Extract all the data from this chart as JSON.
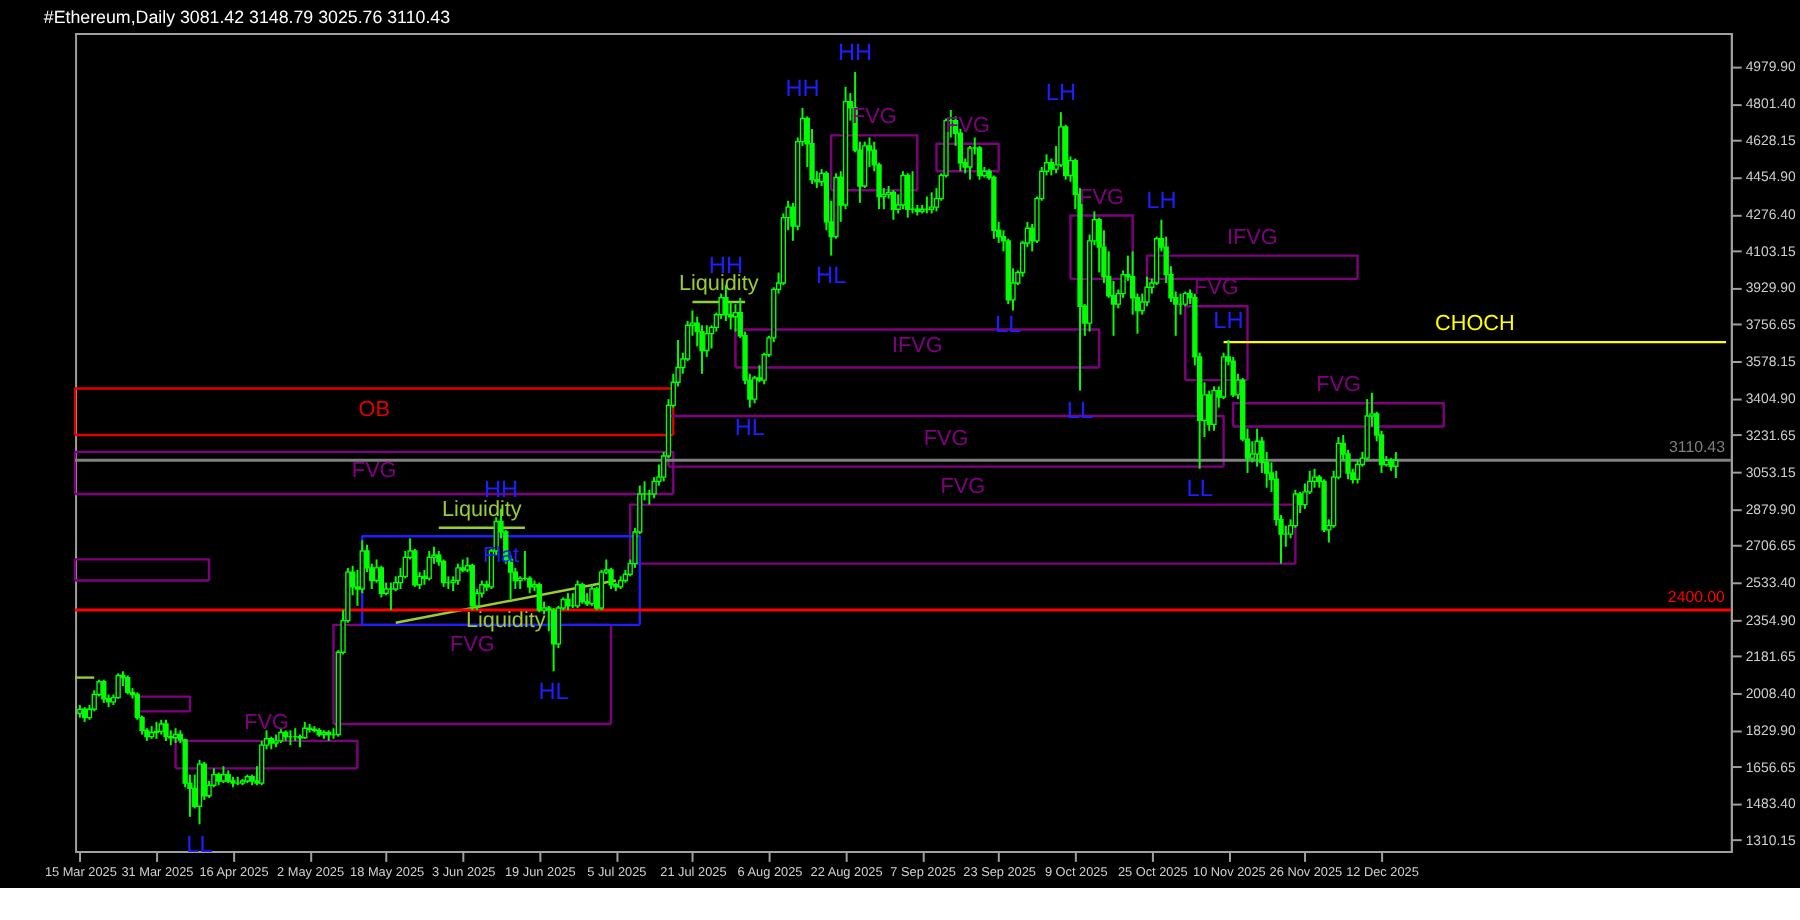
{
  "chart_data": {
    "type": "candlestick",
    "title": "#Ethereum,Daily  3081.42 3148.79 3025.76 3110.43",
    "color": "#00ff00",
    "xlim": [
      "2025-03-14",
      "2026-02-23"
    ],
    "ylim": [
      1258,
      5135
    ],
    "xticks": [
      {
        "value": "2025-03-15",
        "label": "15 Mar 2025"
      },
      {
        "value": "2025-03-31",
        "label": "31 Mar 2025"
      },
      {
        "value": "2025-04-16",
        "label": "16 Apr 2025"
      },
      {
        "value": "2025-05-02",
        "label": "2 May 2025"
      },
      {
        "value": "2025-05-18",
        "label": "18 May 2025"
      },
      {
        "value": "2025-06-03",
        "label": "3 Jun 2025"
      },
      {
        "value": "2025-06-19",
        "label": "19 Jun 2025"
      },
      {
        "value": "2025-07-05",
        "label": "5 Jul 2025"
      },
      {
        "value": "2025-07-21",
        "label": "21 Jul 2025"
      },
      {
        "value": "2025-08-06",
        "label": "6 Aug 2025"
      },
      {
        "value": "2025-08-22",
        "label": "22 Aug 2025"
      },
      {
        "value": "2025-09-07",
        "label": "7 Sep 2025"
      },
      {
        "value": "2025-09-23",
        "label": "23 Sep 2025"
      },
      {
        "value": "2025-10-09",
        "label": "9 Oct 2025"
      },
      {
        "value": "2025-10-25",
        "label": "25 Oct 2025"
      },
      {
        "value": "2025-11-10",
        "label": "10 Nov 2025"
      },
      {
        "value": "2025-11-26",
        "label": "26 Nov 2025"
      },
      {
        "value": "2025-12-12",
        "label": "12 Dec 2025"
      }
    ],
    "yticks": [
      {
        "value": 4979.9,
        "label": "4979.90"
      },
      {
        "value": 4801.4,
        "label": "4801.40"
      },
      4628.15,
      {
        "value": 4454.9,
        "label": "4454.90"
      },
      {
        "value": 4276.4,
        "label": "4276.40"
      },
      4103.15,
      {
        "value": 3929.9,
        "label": "3929.90"
      },
      3756.65,
      3578.15,
      {
        "value": 3404.9,
        "label": "3404.90"
      },
      3231.65,
      3053.15,
      {
        "value": 2879.9,
        "label": "2879.90"
      },
      2706.65,
      {
        "value": 2533.4,
        "label": "2533.40"
      },
      {
        "value": 2354.9,
        "label": "2354.90"
      },
      2181.65,
      {
        "value": 2008.4,
        "label": "2008.40"
      },
      {
        "value": 1829.9,
        "label": "1829.90"
      },
      1656.65,
      {
        "value": 1483.4,
        "label": "1483.40"
      },
      1310.15
    ],
    "x": [
      "2025-03-15",
      "2025-03-16",
      "2025-03-17",
      "2025-03-18",
      "2025-03-19",
      "2025-03-20",
      "2025-03-21",
      "2025-03-22",
      "2025-03-23",
      "2025-03-24",
      "2025-03-25",
      "2025-03-26",
      "2025-03-27",
      "2025-03-28",
      "2025-03-29",
      "2025-03-30",
      "2025-03-31",
      "2025-04-01",
      "2025-04-02",
      "2025-04-03",
      "2025-04-04",
      "2025-04-05",
      "2025-04-06",
      "2025-04-07",
      "2025-04-08",
      "2025-04-09",
      "2025-04-10",
      "2025-04-11",
      "2025-04-12",
      "2025-04-13",
      "2025-04-14",
      "2025-04-15",
      "2025-04-16",
      "2025-04-17",
      "2025-04-18",
      "2025-04-19",
      "2025-04-20",
      "2025-04-21",
      "2025-04-22",
      "2025-04-23",
      "2025-04-24",
      "2025-04-25",
      "2025-04-26",
      "2025-04-27",
      "2025-04-28",
      "2025-04-29",
      "2025-04-30",
      "2025-05-01",
      "2025-05-02",
      "2025-05-03",
      "2025-05-04",
      "2025-05-05",
      "2025-05-06",
      "2025-05-07",
      "2025-05-08",
      "2025-05-09",
      "2025-05-10",
      "2025-05-11",
      "2025-05-12",
      "2025-05-13",
      "2025-05-14",
      "2025-05-15",
      "2025-05-16",
      "2025-05-17",
      "2025-05-18",
      "2025-05-19",
      "2025-05-20",
      "2025-05-21",
      "2025-05-22",
      "2025-05-23",
      "2025-05-24",
      "2025-05-25",
      "2025-05-26",
      "2025-05-27",
      "2025-05-28",
      "2025-05-29",
      "2025-05-30",
      "2025-05-31",
      "2025-06-01",
      "2025-06-02",
      "2025-06-03",
      "2025-06-04",
      "2025-06-05",
      "2025-06-06",
      "2025-06-07",
      "2025-06-08",
      "2025-06-09",
      "2025-06-10",
      "2025-06-11",
      "2025-06-12",
      "2025-06-13",
      "2025-06-14",
      "2025-06-15",
      "2025-06-16",
      "2025-06-17",
      "2025-06-18",
      "2025-06-19",
      "2025-06-20",
      "2025-06-21",
      "2025-06-22",
      "2025-06-23",
      "2025-06-24",
      "2025-06-25",
      "2025-06-26",
      "2025-06-27",
      "2025-06-28",
      "2025-06-29",
      "2025-06-30",
      "2025-07-01",
      "2025-07-02",
      "2025-07-03",
      "2025-07-04",
      "2025-07-05",
      "2025-07-06",
      "2025-07-07",
      "2025-07-08",
      "2025-07-09",
      "2025-07-10",
      "2025-07-11",
      "2025-07-12",
      "2025-07-13",
      "2025-07-14",
      "2025-07-15",
      "2025-07-16",
      "2025-07-17",
      "2025-07-18",
      "2025-07-19",
      "2025-07-20",
      "2025-07-21",
      "2025-07-22",
      "2025-07-23",
      "2025-07-24",
      "2025-07-25",
      "2025-07-26",
      "2025-07-27",
      "2025-07-28",
      "2025-07-29",
      "2025-07-30",
      "2025-07-31",
      "2025-08-01",
      "2025-08-02",
      "2025-08-03",
      "2025-08-04",
      "2025-08-05",
      "2025-08-06",
      "2025-08-07",
      "2025-08-08",
      "2025-08-09",
      "2025-08-10",
      "2025-08-11",
      "2025-08-12",
      "2025-08-13",
      "2025-08-14",
      "2025-08-15",
      "2025-08-16",
      "2025-08-17",
      "2025-08-18",
      "2025-08-19",
      "2025-08-20",
      "2025-08-21",
      "2025-08-22",
      "2025-08-23",
      "2025-08-24",
      "2025-08-25",
      "2025-08-26",
      "2025-08-27",
      "2025-08-28",
      "2025-08-29",
      "2025-08-30",
      "2025-08-31",
      "2025-09-01",
      "2025-09-02",
      "2025-09-03",
      "2025-09-04",
      "2025-09-05",
      "2025-09-06",
      "2025-09-07",
      "2025-09-08",
      "2025-09-09",
      "2025-09-10",
      "2025-09-11",
      "2025-09-12",
      "2025-09-13",
      "2025-09-14",
      "2025-09-15",
      "2025-09-16",
      "2025-09-17",
      "2025-09-18",
      "2025-09-19",
      "2025-09-20",
      "2025-09-21",
      "2025-09-22",
      "2025-09-23",
      "2025-09-24",
      "2025-09-25",
      "2025-09-26",
      "2025-09-27",
      "2025-09-28",
      "2025-09-29",
      "2025-09-30",
      "2025-10-01",
      "2025-10-02",
      "2025-10-03",
      "2025-10-04",
      "2025-10-05",
      "2025-10-06",
      "2025-10-07",
      "2025-10-08",
      "2025-10-09",
      "2025-10-10",
      "2025-10-11",
      "2025-10-12",
      "2025-10-13",
      "2025-10-14",
      "2025-10-15",
      "2025-10-16",
      "2025-10-17",
      "2025-10-18",
      "2025-10-19",
      "2025-10-20",
      "2025-10-21",
      "2025-10-22",
      "2025-10-23",
      "2025-10-24",
      "2025-10-25",
      "2025-10-26",
      "2025-10-27",
      "2025-10-28",
      "2025-10-29",
      "2025-10-30",
      "2025-10-31",
      "2025-11-01",
      "2025-11-02",
      "2025-11-03",
      "2025-11-04",
      "2025-11-05",
      "2025-11-06",
      "2025-11-07",
      "2025-11-08",
      "2025-11-09",
      "2025-11-10",
      "2025-11-11",
      "2025-11-12",
      "2025-11-13",
      "2025-11-14",
      "2025-11-15",
      "2025-11-16",
      "2025-11-17",
      "2025-11-18",
      "2025-11-19",
      "2025-11-20",
      "2025-11-21",
      "2025-11-22",
      "2025-11-23",
      "2025-11-24",
      "2025-11-25",
      "2025-11-26",
      "2025-11-27",
      "2025-11-28",
      "2025-11-29",
      "2025-11-30",
      "2025-12-01",
      "2025-12-02",
      "2025-12-03",
      "2025-12-04",
      "2025-12-05",
      "2025-12-06",
      "2025-12-07",
      "2025-12-08",
      "2025-12-09",
      "2025-12-10",
      "2025-12-11",
      "2025-12-12",
      "2025-12-13",
      "2025-12-14",
      "2025-12-15"
    ],
    "ohlc": [
      [
        1910,
        1950,
        1890,
        1930
      ],
      [
        1930,
        1940,
        1870,
        1890
      ],
      [
        1890,
        1950,
        1880,
        1930
      ],
      [
        1930,
        2020,
        1920,
        2000
      ],
      [
        2000,
        2070,
        1990,
        2060
      ],
      [
        2060,
        2070,
        1960,
        1980
      ],
      [
        1980,
        2000,
        1940,
        1965
      ],
      [
        1965,
        2000,
        1950,
        1985
      ],
      [
        1985,
        2100,
        1980,
        2090
      ],
      [
        2090,
        2110,
        2040,
        2080
      ],
      [
        2080,
        2090,
        2000,
        2010
      ],
      [
        2010,
        2030,
        1980,
        2000
      ],
      [
        2000,
        2010,
        1880,
        1890
      ],
      [
        1890,
        1900,
        1810,
        1830
      ],
      [
        1830,
        1840,
        1780,
        1800
      ],
      [
        1800,
        1850,
        1790,
        1820
      ],
      [
        1820,
        1870,
        1790,
        1825
      ],
      [
        1825,
        1880,
        1810,
        1860
      ],
      [
        1860,
        1880,
        1780,
        1800
      ],
      [
        1800,
        1830,
        1760,
        1795
      ],
      [
        1795,
        1840,
        1770,
        1810
      ],
      [
        1810,
        1830,
        1770,
        1785
      ],
      [
        1785,
        1790,
        1560,
        1580
      ],
      [
        1580,
        1620,
        1420,
        1555
      ],
      [
        1555,
        1620,
        1460,
        1470
      ],
      [
        1470,
        1690,
        1385,
        1670
      ],
      [
        1670,
        1680,
        1500,
        1520
      ],
      [
        1520,
        1590,
        1510,
        1570
      ],
      [
        1570,
        1650,
        1560,
        1620
      ],
      [
        1620,
        1630,
        1570,
        1590
      ],
      [
        1590,
        1660,
        1580,
        1620
      ],
      [
        1620,
        1640,
        1580,
        1590
      ],
      [
        1590,
        1610,
        1560,
        1580
      ],
      [
        1580,
        1610,
        1570,
        1580
      ],
      [
        1580,
        1600,
        1570,
        1590
      ],
      [
        1590,
        1620,
        1580,
        1610
      ],
      [
        1610,
        1620,
        1570,
        1590
      ],
      [
        1590,
        1660,
        1570,
        1580
      ],
      [
        1580,
        1780,
        1570,
        1760
      ],
      [
        1760,
        1830,
        1740,
        1790
      ],
      [
        1790,
        1800,
        1740,
        1770
      ],
      [
        1770,
        1810,
        1750,
        1780
      ],
      [
        1780,
        1840,
        1770,
        1820
      ],
      [
        1820,
        1830,
        1780,
        1800
      ],
      [
        1800,
        1830,
        1760,
        1800
      ],
      [
        1800,
        1840,
        1780,
        1800
      ],
      [
        1800,
        1810,
        1750,
        1795
      ],
      [
        1795,
        1870,
        1790,
        1840
      ],
      [
        1840,
        1860,
        1820,
        1835
      ],
      [
        1835,
        1850,
        1820,
        1830
      ],
      [
        1830,
        1840,
        1800,
        1810
      ],
      [
        1810,
        1830,
        1790,
        1820
      ],
      [
        1820,
        1830,
        1780,
        1810
      ],
      [
        1810,
        1840,
        1790,
        1810
      ],
      [
        1810,
        2210,
        1800,
        2200
      ],
      [
        2200,
        2400,
        2190,
        2350
      ],
      [
        2350,
        2600,
        2340,
        2580
      ],
      [
        2580,
        2610,
        2470,
        2510
      ],
      [
        2510,
        2590,
        2420,
        2500
      ],
      [
        2500,
        2730,
        2480,
        2680
      ],
      [
        2680,
        2710,
        2580,
        2600
      ],
      [
        2600,
        2620,
        2500,
        2540
      ],
      [
        2540,
        2640,
        2530,
        2600
      ],
      [
        2600,
        2610,
        2460,
        2480
      ],
      [
        2480,
        2530,
        2470,
        2500
      ],
      [
        2500,
        2530,
        2400,
        2500
      ],
      [
        2500,
        2560,
        2490,
        2530
      ],
      [
        2530,
        2600,
        2500,
        2560
      ],
      [
        2560,
        2680,
        2550,
        2650
      ],
      [
        2650,
        2740,
        2640,
        2680
      ],
      [
        2680,
        2690,
        2510,
        2520
      ],
      [
        2520,
        2580,
        2500,
        2560
      ],
      [
        2560,
        2590,
        2520,
        2550
      ],
      [
        2550,
        2680,
        2540,
        2650
      ],
      [
        2650,
        2700,
        2620,
        2660
      ],
      [
        2660,
        2680,
        2610,
        2630
      ],
      [
        2630,
        2640,
        2510,
        2530
      ],
      [
        2530,
        2560,
        2500,
        2530
      ],
      [
        2530,
        2560,
        2490,
        2540
      ],
      [
        2540,
        2620,
        2520,
        2600
      ],
      [
        2600,
        2640,
        2580,
        2590
      ],
      [
        2590,
        2650,
        2580,
        2610
      ],
      [
        2610,
        2620,
        2400,
        2420
      ],
      [
        2420,
        2500,
        2400,
        2480
      ],
      [
        2480,
        2540,
        2460,
        2520
      ],
      [
        2520,
        2540,
        2490,
        2510
      ],
      [
        2510,
        2690,
        2500,
        2680
      ],
      [
        2680,
        2840,
        2660,
        2820
      ],
      [
        2820,
        2880,
        2740,
        2770
      ],
      [
        2770,
        2780,
        2620,
        2640
      ],
      [
        2640,
        2660,
        2450,
        2580
      ],
      [
        2580,
        2600,
        2500,
        2540
      ],
      [
        2540,
        2560,
        2500,
        2550
      ],
      [
        2550,
        2680,
        2540,
        2550
      ],
      [
        2550,
        2560,
        2480,
        2510
      ],
      [
        2510,
        2540,
        2490,
        2520
      ],
      [
        2520,
        2530,
        2390,
        2400
      ],
      [
        2400,
        2440,
        2380,
        2410
      ],
      [
        2410,
        2420,
        2300,
        2400
      ],
      [
        2400,
        2410,
        2110,
        2240
      ],
      [
        2240,
        2420,
        2220,
        2410
      ],
      [
        2410,
        2460,
        2400,
        2450
      ],
      [
        2450,
        2480,
        2400,
        2420
      ],
      [
        2420,
        2480,
        2410,
        2420
      ],
      [
        2420,
        2540,
        2410,
        2520
      ],
      [
        2520,
        2530,
        2430,
        2440
      ],
      [
        2440,
        2480,
        2420,
        2430
      ],
      [
        2430,
        2520,
        2420,
        2500
      ],
      [
        2500,
        2510,
        2400,
        2410
      ],
      [
        2410,
        2590,
        2400,
        2580
      ],
      [
        2580,
        2640,
        2570,
        2590
      ],
      [
        2590,
        2600,
        2500,
        2520
      ],
      [
        2520,
        2530,
        2490,
        2510
      ],
      [
        2510,
        2560,
        2500,
        2540
      ],
      [
        2540,
        2590,
        2530,
        2570
      ],
      [
        2570,
        2640,
        2560,
        2620
      ],
      [
        2620,
        2790,
        2600,
        2770
      ],
      [
        2770,
        2990,
        2760,
        2950
      ],
      [
        2950,
        3010,
        2920,
        2950
      ],
      [
        2950,
        2970,
        2900,
        2950
      ],
      [
        2950,
        3030,
        2930,
        3010
      ],
      [
        3010,
        3090,
        2990,
        3030
      ],
      [
        3030,
        3150,
        3010,
        3130
      ],
      [
        3130,
        3400,
        3120,
        3370
      ],
      [
        3370,
        3520,
        3360,
        3480
      ],
      [
        3480,
        3680,
        3460,
        3550
      ],
      [
        3550,
        3620,
        3520,
        3590
      ],
      [
        3590,
        3770,
        3580,
        3750
      ],
      [
        3750,
        3820,
        3700,
        3760
      ],
      [
        3760,
        3790,
        3650,
        3720
      ],
      [
        3720,
        3750,
        3520,
        3630
      ],
      [
        3630,
        3750,
        3600,
        3710
      ],
      [
        3710,
        3750,
        3640,
        3740
      ],
      [
        3740,
        3810,
        3720,
        3800
      ],
      [
        3800,
        3900,
        3780,
        3880
      ],
      [
        3880,
        3940,
        3770,
        3800
      ],
      [
        3800,
        3860,
        3730,
        3790
      ],
      [
        3790,
        3850,
        3720,
        3810
      ],
      [
        3810,
        3880,
        3690,
        3700
      ],
      [
        3700,
        3720,
        3470,
        3490
      ],
      [
        3490,
        3520,
        3360,
        3400
      ],
      [
        3400,
        3510,
        3380,
        3500
      ],
      [
        3500,
        3560,
        3480,
        3490
      ],
      [
        3490,
        3620,
        3470,
        3610
      ],
      [
        3610,
        3700,
        3600,
        3690
      ],
      [
        3690,
        3930,
        3670,
        3920
      ],
      [
        3920,
        4000,
        3900,
        3950
      ],
      [
        3950,
        4280,
        3940,
        4260
      ],
      [
        4260,
        4340,
        4200,
        4310
      ],
      [
        4310,
        4330,
        4150,
        4220
      ],
      [
        4220,
        4640,
        4200,
        4620
      ],
      [
        4620,
        4780,
        4600,
        4730
      ],
      [
        4730,
        4740,
        4500,
        4610
      ],
      [
        4610,
        4680,
        4420,
        4440
      ],
      [
        4440,
        4480,
        4400,
        4430
      ],
      [
        4430,
        4490,
        4410,
        4470
      ],
      [
        4470,
        4480,
        4200,
        4240
      ],
      [
        4240,
        4340,
        4080,
        4170
      ],
      [
        4170,
        4470,
        4160,
        4450
      ],
      [
        4450,
        4480,
        4240,
        4320
      ],
      [
        4320,
        4880,
        4300,
        4810
      ],
      [
        4810,
        4850,
        4720,
        4780
      ],
      [
        4780,
        4950,
        4570,
        4580
      ],
      [
        4580,
        4620,
        4330,
        4410
      ],
      [
        4410,
        4620,
        4400,
        4600
      ],
      [
        4600,
        4640,
        4500,
        4580
      ],
      [
        4580,
        4620,
        4480,
        4510
      ],
      [
        4510,
        4520,
        4300,
        4360
      ],
      [
        4360,
        4400,
        4300,
        4370
      ],
      [
        4370,
        4410,
        4350,
        4380
      ],
      [
        4380,
        4390,
        4250,
        4300
      ],
      [
        4300,
        4370,
        4280,
        4320
      ],
      [
        4320,
        4480,
        4300,
        4460
      ],
      [
        4460,
        4470,
        4260,
        4300
      ],
      [
        4300,
        4480,
        4280,
        4300
      ],
      [
        4300,
        4320,
        4270,
        4290
      ],
      [
        4290,
        4320,
        4280,
        4300
      ],
      [
        4300,
        4360,
        4280,
        4300
      ],
      [
        4300,
        4380,
        4280,
        4310
      ],
      [
        4310,
        4400,
        4290,
        4350
      ],
      [
        4350,
        4470,
        4340,
        4460
      ],
      [
        4460,
        4730,
        4450,
        4720
      ],
      [
        4720,
        4770,
        4640,
        4720
      ],
      [
        4720,
        4740,
        4600,
        4660
      ],
      [
        4660,
        4680,
        4480,
        4520
      ],
      [
        4520,
        4540,
        4470,
        4500
      ],
      [
        4500,
        4600,
        4440,
        4590
      ],
      [
        4590,
        4640,
        4560,
        4590
      ],
      [
        4590,
        4600,
        4440,
        4460
      ],
      [
        4460,
        4500,
        4450,
        4480
      ],
      [
        4480,
        4490,
        4440,
        4450
      ],
      [
        4450,
        4460,
        4160,
        4200
      ],
      [
        4200,
        4240,
        4140,
        4170
      ],
      [
        4170,
        4200,
        4100,
        4150
      ],
      [
        4150,
        4160,
        3850,
        3870
      ],
      [
        3870,
        4020,
        3820,
        3950
      ],
      [
        3950,
        4010,
        3940,
        4000
      ],
      [
        4000,
        4150,
        3980,
        4140
      ],
      [
        4140,
        4240,
        4120,
        4210
      ],
      [
        4210,
        4230,
        4100,
        4150
      ],
      [
        4150,
        4360,
        4140,
        4350
      ],
      [
        4350,
        4500,
        4340,
        4480
      ],
      [
        4480,
        4560,
        4460,
        4520
      ],
      [
        4520,
        4540,
        4460,
        4490
      ],
      [
        4490,
        4600,
        4470,
        4510
      ],
      [
        4510,
        4760,
        4500,
        4690
      ],
      [
        4690,
        4700,
        4440,
        4460
      ],
      [
        4460,
        4550,
        4430,
        4530
      ],
      [
        4530,
        4540,
        4300,
        4370
      ],
      [
        4370,
        4400,
        3440,
        3840
      ],
      [
        3840,
        3850,
        3700,
        3760
      ],
      [
        3760,
        4180,
        3720,
        4150
      ],
      [
        4150,
        4290,
        4130,
        4250
      ],
      [
        4250,
        4260,
        4000,
        4120
      ],
      [
        4120,
        4200,
        3950,
        3980
      ],
      [
        3980,
        4100,
        3880,
        3890
      ],
      [
        3890,
        3960,
        3700,
        3850
      ],
      [
        3850,
        3920,
        3830,
        3900
      ],
      [
        3900,
        4010,
        3880,
        3990
      ],
      [
        3990,
        4080,
        3960,
        3980
      ],
      [
        3980,
        4100,
        3800,
        3880
      ],
      [
        3880,
        3900,
        3710,
        3820
      ],
      [
        3820,
        3900,
        3800,
        3860
      ],
      [
        3860,
        3980,
        3840,
        3930
      ],
      [
        3930,
        3970,
        3900,
        3950
      ],
      [
        3950,
        4170,
        3940,
        4160
      ],
      [
        4160,
        4250,
        4100,
        4120
      ],
      [
        4120,
        4170,
        3950,
        3990
      ],
      [
        3990,
        4030,
        3860,
        3880
      ],
      [
        3880,
        3910,
        3700,
        3850
      ],
      [
        3850,
        3900,
        3800,
        3850
      ],
      [
        3850,
        3910,
        3840,
        3900
      ],
      [
        3900,
        3920,
        3850,
        3880
      ],
      [
        3880,
        3900,
        3560,
        3600
      ],
      [
        3600,
        3620,
        3070,
        3300
      ],
      [
        3300,
        3480,
        3220,
        3420
      ],
      [
        3420,
        3440,
        3250,
        3280
      ],
      [
        3280,
        3460,
        3250,
        3440
      ],
      [
        3440,
        3460,
        3360,
        3410
      ],
      [
        3410,
        3620,
        3400,
        3600
      ],
      [
        3600,
        3680,
        3560,
        3580
      ],
      [
        3580,
        3600,
        3410,
        3420
      ],
      [
        3420,
        3520,
        3400,
        3490
      ],
      [
        3490,
        3500,
        3200,
        3210
      ],
      [
        3210,
        3260,
        3050,
        3120
      ],
      [
        3120,
        3200,
        3100,
        3140
      ],
      [
        3140,
        3260,
        3080,
        3200
      ],
      [
        3200,
        3220,
        3050,
        3100
      ],
      [
        3100,
        3150,
        2980,
        3050
      ],
      [
        3050,
        3100,
        2960,
        3020
      ],
      [
        3020,
        3060,
        2800,
        2830
      ],
      [
        2830,
        2850,
        2620,
        2760
      ],
      [
        2760,
        2800,
        2700,
        2760
      ],
      [
        2760,
        2830,
        2740,
        2800
      ],
      [
        2800,
        2970,
        2790,
        2950
      ],
      [
        2950,
        2960,
        2860,
        2900
      ],
      [
        2900,
        3000,
        2880,
        2960
      ],
      [
        2960,
        3060,
        2950,
        3010
      ],
      [
        3010,
        3070,
        2980,
        3030
      ],
      [
        3030,
        3040,
        2980,
        3010
      ],
      [
        3010,
        3020,
        2770,
        2780
      ],
      [
        2780,
        2830,
        2720,
        2800
      ],
      [
        2800,
        3060,
        2790,
        3030
      ],
      [
        3030,
        3220,
        3020,
        3190
      ],
      [
        3190,
        3230,
        3110,
        3140
      ],
      [
        3140,
        3160,
        3020,
        3050
      ],
      [
        3050,
        3070,
        3000,
        3020
      ],
      [
        3020,
        3110,
        3000,
        3090
      ],
      [
        3090,
        3150,
        3080,
        3120
      ],
      [
        3120,
        3400,
        3110,
        3320
      ],
      [
        3320,
        3430,
        3270,
        3330
      ],
      [
        3330,
        3340,
        3200,
        3230
      ],
      [
        3230,
        3250,
        3050,
        3090
      ],
      [
        3090,
        3130,
        3080,
        3110
      ],
      [
        3110,
        3120,
        3060,
        3080
      ],
      [
        3081.42,
        3148.79,
        3025.76,
        3110.43
      ]
    ],
    "series": [
      {
        "type": "line",
        "name": "OB",
        "color": "#e00000",
        "x": [
          "2025-03-14",
          "2025-03-14",
          "2025-07-17",
          "2025-07-17"
        ],
        "values": [
          3230,
          3450,
          3450,
          3230
        ]
      },
      {
        "type": "line",
        "color": "#e00000",
        "x": [
          "2025-03-14",
          "2025-07-17"
        ],
        "values": [
          3230,
          3230
        ]
      },
      {
        "type": "line",
        "name": "FVG",
        "color": "#800080",
        "x": [
          "2025-03-14",
          "2025-03-14",
          "2025-07-17",
          "2025-07-17"
        ],
        "values": [
          2950,
          3150,
          3150,
          2950
        ]
      },
      {
        "type": "line",
        "color": "#800080",
        "x": [
          "2025-03-14",
          "2025-07-17"
        ],
        "values": [
          2950,
          2950
        ]
      },
      {
        "type": "line",
        "name": "FVG",
        "color": "#800080",
        "x": [
          "2025-07-16",
          "2025-07-16",
          "2025-11-09",
          "2025-11-09"
        ],
        "values": [
          3080,
          3320,
          3320,
          3080
        ]
      },
      {
        "type": "line",
        "color": "#800080",
        "x": [
          "2025-07-16",
          "2025-11-09"
        ],
        "values": [
          3080,
          3080
        ]
      },
      {
        "type": "line",
        "name": "FVG",
        "color": "#800080",
        "x": [
          "2025-07-08",
          "2025-07-08",
          "2025-11-24",
          "2025-11-24"
        ],
        "values": [
          2620,
          2900,
          2900,
          2620
        ]
      },
      {
        "type": "line",
        "color": "#800080",
        "x": [
          "2025-07-08",
          "2025-11-24"
        ],
        "values": [
          2620,
          2620
        ]
      },
      {
        "type": "line",
        "color": "#800080",
        "x": [
          "2025-03-14",
          "2025-03-14",
          "2025-04-11",
          "2025-04-11"
        ],
        "values": [
          2540,
          2640,
          2640,
          2540
        ]
      },
      {
        "type": "line",
        "color": "#800080",
        "x": [
          "2025-03-14",
          "2025-04-11"
        ],
        "values": [
          2540,
          2540
        ]
      },
      {
        "type": "line",
        "color": "#800080",
        "x": [
          "2025-03-27",
          "2025-03-27",
          "2025-04-07",
          "2025-04-07"
        ],
        "values": [
          1920,
          1990,
          1990,
          1920
        ]
      },
      {
        "type": "line",
        "color": "#800080",
        "x": [
          "2025-03-27",
          "2025-04-07"
        ],
        "values": [
          1920,
          1920
        ]
      },
      {
        "type": "line",
        "name": "FVG",
        "color": "#800080",
        "x": [
          "2025-04-04",
          "2025-04-04",
          "2025-05-12",
          "2025-05-12"
        ],
        "values": [
          1650,
          1780,
          1780,
          1650
        ]
      },
      {
        "type": "line",
        "color": "#800080",
        "x": [
          "2025-04-04",
          "2025-05-12"
        ],
        "values": [
          1650,
          1650
        ]
      },
      {
        "type": "line",
        "name": "FVG",
        "color": "#800080",
        "x": [
          "2025-05-07",
          "2025-05-07",
          "2025-07-04",
          "2025-07-04"
        ],
        "values": [
          1860,
          2330,
          2330,
          1860
        ]
      },
      {
        "type": "line",
        "color": "#800080",
        "x": [
          "2025-05-07",
          "2025-07-04"
        ],
        "values": [
          1860,
          1860
        ]
      },
      {
        "type": "line",
        "name": "Flat",
        "color": "#1e1eff",
        "x": [
          "2025-05-13",
          "2025-05-13",
          "2025-07-10",
          "2025-07-10"
        ],
        "values": [
          2330,
          2750,
          2750,
          2330
        ]
      },
      {
        "type": "line",
        "color": "#1e1eff",
        "x": [
          "2025-05-13",
          "2025-07-10"
        ],
        "values": [
          2330,
          2330
        ]
      },
      {
        "type": "line",
        "name": "IFVG",
        "color": "#800080",
        "x": [
          "2025-07-30",
          "2025-07-30",
          "2025-10-14",
          "2025-10-14"
        ],
        "values": [
          3550,
          3730,
          3730,
          3550
        ]
      },
      {
        "type": "line",
        "color": "#800080",
        "x": [
          "2025-07-30",
          "2025-10-14"
        ],
        "values": [
          3550,
          3550
        ]
      },
      {
        "type": "line",
        "name": "FVG",
        "color": "#800080",
        "x": [
          "2025-08-19",
          "2025-08-19",
          "2025-09-06",
          "2025-09-06"
        ],
        "values": [
          4390,
          4650,
          4650,
          4390
        ]
      },
      {
        "type": "line",
        "color": "#800080",
        "x": [
          "2025-08-19",
          "2025-09-06"
        ],
        "values": [
          4390,
          4390
        ]
      },
      {
        "type": "line",
        "name": "FVG",
        "color": "#800080",
        "x": [
          "2025-09-10",
          "2025-09-10",
          "2025-09-23",
          "2025-09-23"
        ],
        "values": [
          4480,
          4610,
          4610,
          4480
        ]
      },
      {
        "type": "line",
        "color": "#800080",
        "x": [
          "2025-09-10",
          "2025-09-23"
        ],
        "values": [
          4480,
          4480
        ]
      },
      {
        "type": "line",
        "name": "FVG",
        "color": "#800080",
        "x": [
          "2025-10-08",
          "2025-10-08",
          "2025-10-21",
          "2025-10-21"
        ],
        "values": [
          3970,
          4270,
          4270,
          3970
        ]
      },
      {
        "type": "line",
        "color": "#800080",
        "x": [
          "2025-10-08",
          "2025-10-21"
        ],
        "values": [
          3970,
          3970
        ]
      },
      {
        "type": "line",
        "name": "IFVG",
        "color": "#800080",
        "x": [
          "2025-10-24",
          "2025-10-24",
          "2025-12-07",
          "2025-12-07"
        ],
        "values": [
          3970,
          4080,
          4080,
          3970
        ]
      },
      {
        "type": "line",
        "color": "#800080",
        "x": [
          "2025-10-24",
          "2025-12-07"
        ],
        "values": [
          3970,
          3970
        ]
      },
      {
        "type": "line",
        "name": "FVG",
        "color": "#800080",
        "x": [
          "2025-11-01",
          "2025-11-01",
          "2025-11-14",
          "2025-11-14"
        ],
        "values": [
          3490,
          3840,
          3840,
          3490
        ]
      },
      {
        "type": "line",
        "color": "#800080",
        "x": [
          "2025-11-01",
          "2025-11-14"
        ],
        "values": [
          3490,
          3490
        ]
      },
      {
        "type": "line",
        "name": "FVG",
        "color": "#800080",
        "x": [
          "2025-11-11",
          "2025-11-11",
          "2025-12-25",
          "2025-12-25"
        ],
        "values": [
          3270,
          3380,
          3380,
          3270
        ]
      },
      {
        "type": "line",
        "color": "#800080",
        "x": [
          "2025-11-11",
          "2025-12-25"
        ],
        "values": [
          3270,
          3270
        ]
      },
      {
        "type": "line",
        "name": "CHOCH",
        "color": "#ffff00",
        "x": [
          "2025-11-09",
          "2026-02-22"
        ],
        "values": [
          3670,
          3670
        ]
      },
      {
        "type": "line",
        "name": "Liquidity",
        "color": "#9acd32",
        "x": [
          "2025-07-21",
          "2025-08-01"
        ],
        "values": [
          3860,
          3860
        ]
      },
      {
        "type": "line",
        "name": "Liquidity",
        "color": "#9acd32",
        "x": [
          "2025-05-29",
          "2025-06-16"
        ],
        "values": [
          2790,
          2790
        ]
      },
      {
        "type": "line",
        "name": "Liquidity",
        "color": "#9acd32",
        "x": [
          "2025-05-20",
          "2025-07-05"
        ],
        "values": [
          2340,
          2540
        ]
      },
      {
        "type": "line",
        "color": "#9acd32",
        "x": [
          "2025-03-14",
          "2025-03-18"
        ],
        "values": [
          2080,
          2080
        ]
      }
    ],
    "ref_lines": [
      {
        "axis": "y",
        "value": 2400,
        "label": "2400.00",
        "color": "#ff0000"
      },
      {
        "axis": "y",
        "value": 3110.43,
        "label": "3110.43",
        "color": "#808080"
      }
    ],
    "annotations": [
      {
        "text": "LL",
        "x": "2025-04-09",
        "y": 1385
      },
      {
        "text": "HH",
        "x": "2025-06-11",
        "y": 2880
      },
      {
        "text": "HL",
        "x": "2025-06-22",
        "y": 2110
      },
      {
        "text": "HH",
        "x": "2025-07-28",
        "y": 3940
      },
      {
        "text": "HL",
        "x": "2025-08-02",
        "y": 3360
      },
      {
        "text": "HH",
        "x": "2025-08-13",
        "y": 4780
      },
      {
        "text": "HL",
        "x": "2025-08-19",
        "y": 4080
      },
      {
        "text": "HH",
        "x": "2025-08-24",
        "y": 4950
      },
      {
        "text": "LL",
        "x": "2025-09-25",
        "y": 3850
      },
      {
        "text": "LH",
        "x": "2025-10-06",
        "y": 4760
      },
      {
        "text": "LL",
        "x": "2025-10-10",
        "y": 3440
      },
      {
        "text": "LH",
        "x": "2025-10-27",
        "y": 4250
      },
      {
        "text": "LL",
        "x": "2025-11-04",
        "y": 3070
      },
      {
        "text": "LH",
        "x": "2025-11-10",
        "y": 3680
      }
    ]
  }
}
